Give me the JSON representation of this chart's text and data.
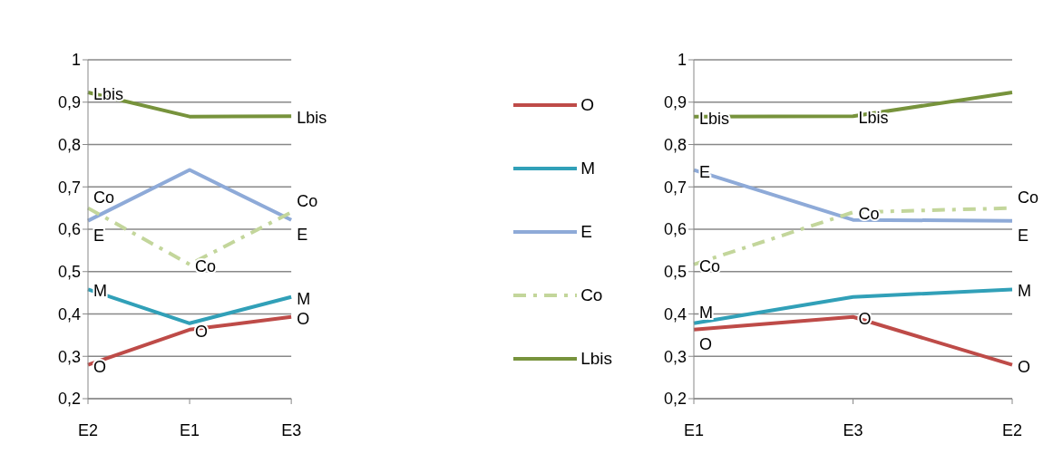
{
  "chart_data": [
    {
      "type": "line",
      "categories": [
        "E2",
        "E1",
        "E3"
      ],
      "ylim": [
        0.2,
        1
      ],
      "yticks": [
        {
          "value": 0.2,
          "label": "0,2"
        },
        {
          "value": 0.3,
          "label": "0,3"
        },
        {
          "value": 0.4,
          "label": "0,4"
        },
        {
          "value": 0.5,
          "label": "0,5"
        },
        {
          "value": 0.6,
          "label": "0,6"
        },
        {
          "value": 0.7,
          "label": "0,7"
        },
        {
          "value": 0.8,
          "label": "0,8"
        },
        {
          "value": 0.9,
          "label": "0,9"
        },
        {
          "value": 1,
          "label": "1"
        }
      ],
      "grid": "y",
      "legend": "right",
      "series": [
        {
          "name": "O",
          "color": "#be4b48",
          "values": [
            0.28,
            0.363,
            0.393
          ]
        },
        {
          "name": "M",
          "color": "#31a0b8",
          "values": [
            0.458,
            0.378,
            0.44
          ]
        },
        {
          "name": "E",
          "color": "#8eaad8",
          "values": [
            0.62,
            0.74,
            0.622
          ]
        },
        {
          "name": "Co",
          "color": "#c3d69b",
          "line_style": "dashed",
          "values": [
            0.65,
            0.517,
            0.64
          ]
        },
        {
          "name": "Lbis",
          "color": "#77933c",
          "values": [
            0.923,
            0.866,
            0.867
          ]
        }
      ],
      "annotations": [
        {
          "text": "O",
          "x": "E2",
          "y": 0.28
        },
        {
          "text": "O",
          "x": "E1",
          "y": 0.363
        },
        {
          "text": "O",
          "x": "E3",
          "y": 0.393
        },
        {
          "text": "M",
          "x": "E2",
          "y": 0.458
        },
        {
          "text": "M",
          "x": "E3",
          "y": 0.44
        },
        {
          "text": "E",
          "x": "E2",
          "y": 0.62
        },
        {
          "text": "E",
          "x": "E3",
          "y": 0.622
        },
        {
          "text": "Co",
          "x": "E2",
          "y": 0.65
        },
        {
          "text": "Co",
          "x": "E1",
          "y": 0.517
        },
        {
          "text": "Co",
          "x": "E3",
          "y": 0.64
        },
        {
          "text": "Lbis",
          "x": "E2",
          "y": 0.923
        },
        {
          "text": "Lbis",
          "x": "E3",
          "y": 0.867
        }
      ]
    },
    {
      "type": "line",
      "categories": [
        "E1",
        "E3",
        "E2"
      ],
      "ylim": [
        0.2,
        1
      ],
      "yticks": [
        {
          "value": 0.2,
          "label": "0,2"
        },
        {
          "value": 0.3,
          "label": "0,3"
        },
        {
          "value": 0.4,
          "label": "0,4"
        },
        {
          "value": 0.5,
          "label": "0,5"
        },
        {
          "value": 0.6,
          "label": "0,6"
        },
        {
          "value": 0.7,
          "label": "0,7"
        },
        {
          "value": 0.8,
          "label": "0,8"
        },
        {
          "value": 0.9,
          "label": "0,9"
        },
        {
          "value": 1,
          "label": "1"
        }
      ],
      "grid": "y",
      "series": [
        {
          "color": "#be4b48",
          "values": [
            0.363,
            0.393,
            0.28
          ]
        },
        {
          "color": "#31a0b8",
          "values": [
            0.378,
            0.44,
            0.458
          ]
        },
        {
          "color": "#8eaad8",
          "values": [
            0.74,
            0.622,
            0.62
          ]
        },
        {
          "color": "#c3d69b",
          "line_style": "dashed",
          "values": [
            0.517,
            0.64,
            0.65
          ]
        },
        {
          "color": "#77933c",
          "values": [
            0.866,
            0.867,
            0.923
          ]
        }
      ],
      "annotations": [
        {
          "text": "O",
          "x": "E1",
          "y": 0.363
        },
        {
          "text": "O",
          "x": "E3",
          "y": 0.393
        },
        {
          "text": "O",
          "x": "E2",
          "y": 0.28
        },
        {
          "text": "M",
          "x": "E1",
          "y": 0.378
        },
        {
          "text": "M",
          "x": "E2",
          "y": 0.458
        },
        {
          "text": "E",
          "x": "E1",
          "y": 0.74
        },
        {
          "text": "E",
          "x": "E2",
          "y": 0.62
        },
        {
          "text": "Co",
          "x": "E1",
          "y": 0.517
        },
        {
          "text": "Co",
          "x": "E3",
          "y": 0.64
        },
        {
          "text": "Co",
          "x": "E2",
          "y": 0.65
        },
        {
          "text": "Lbis",
          "x": "E1",
          "y": 0.866
        },
        {
          "text": "Lbis",
          "x": "E3",
          "y": 0.867
        }
      ]
    }
  ]
}
